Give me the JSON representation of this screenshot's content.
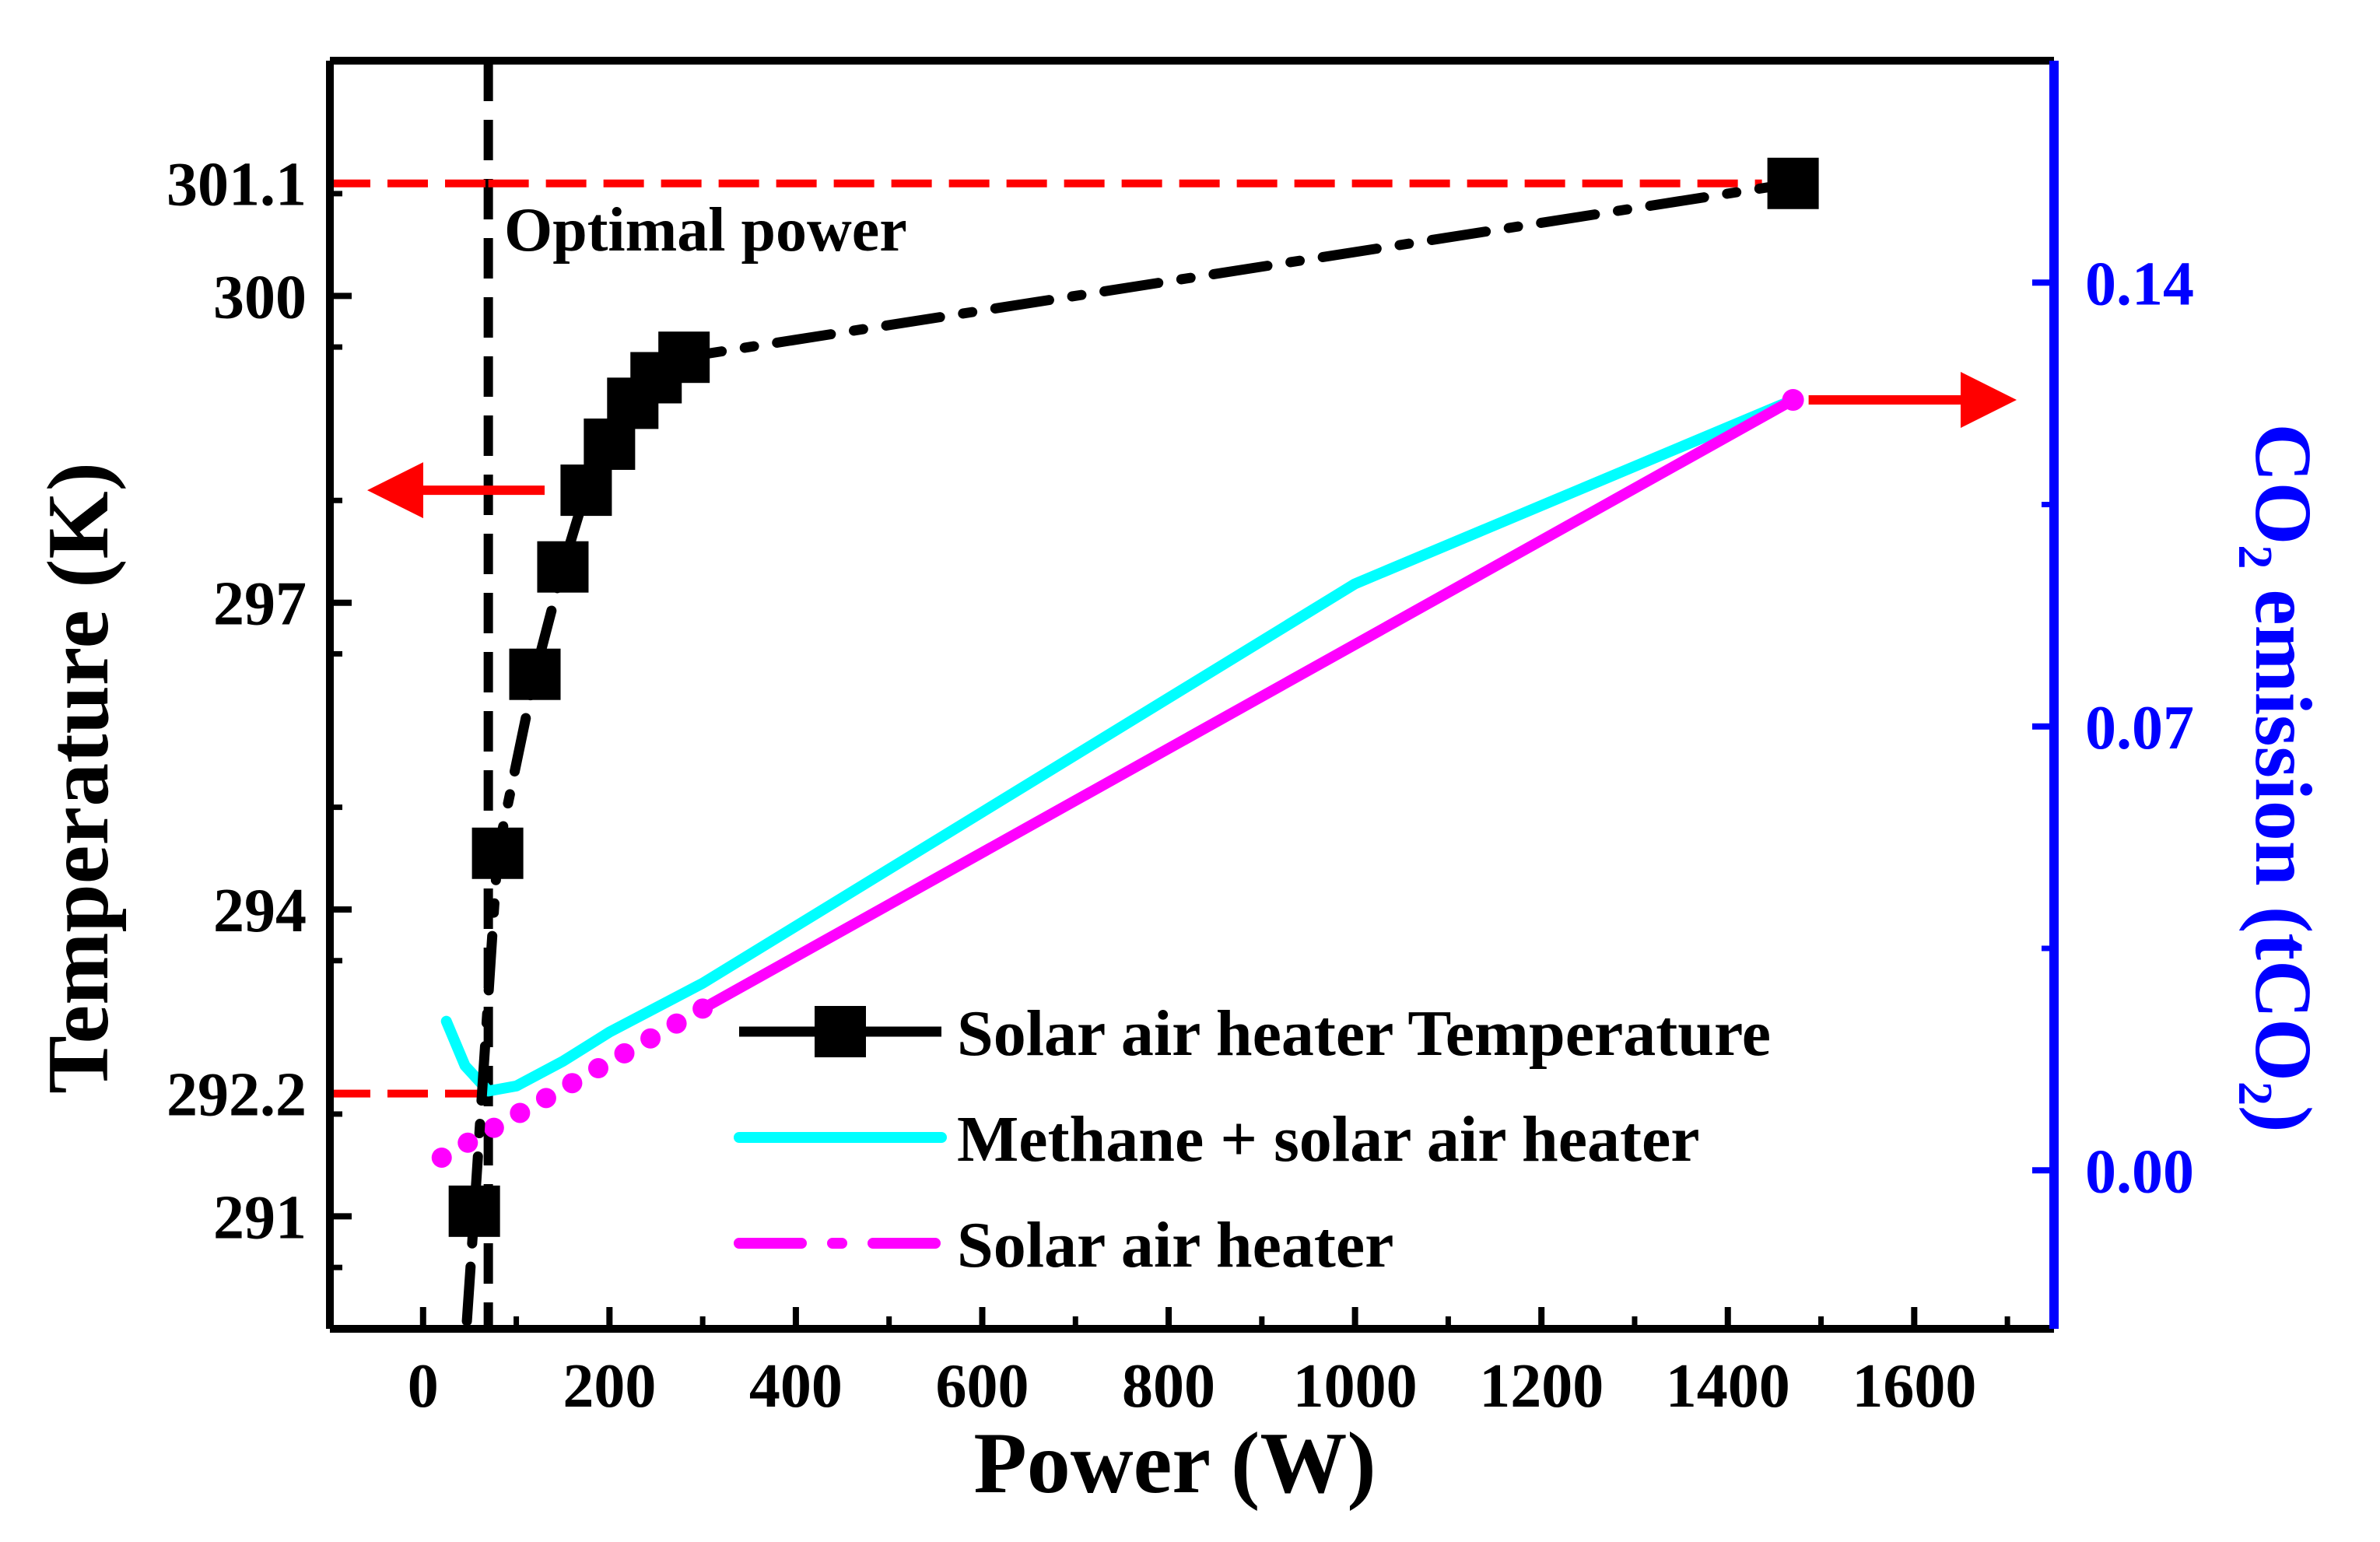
{
  "colors": {
    "axis": "#000000",
    "right_axis": "#0000ff",
    "reference": "#ff0000",
    "temperature": "#000000",
    "methane": "#00ffff",
    "solar": "#ff00ff"
  },
  "chart_data": {
    "type": "line",
    "x_axis": {
      "label": "Power (W)",
      "range": [
        -100,
        1750
      ],
      "ticks": [
        0,
        200,
        400,
        600,
        800,
        1000,
        1200,
        1400,
        1600
      ],
      "tick_labels": [
        "0",
        "200",
        "400",
        "600",
        "800",
        "1000",
        "1200",
        "1400",
        "1600"
      ]
    },
    "y_axis_left": {
      "label": "Temperature (K)",
      "range": [
        289.9,
        302.3
      ],
      "ticks": [
        291,
        294,
        297,
        300
      ],
      "tick_labels": [
        "291",
        "294",
        "297",
        "300"
      ],
      "reference_tick_labels": [
        "292.2",
        "301.1"
      ]
    },
    "y_axis_right": {
      "label_prefix": "CO",
      "label_sub": "2",
      "label_middle": " emission (tCO",
      "label_sub2": "2",
      "label_suffix": ")",
      "range": [
        -0.025,
        0.175
      ],
      "ticks": [
        0.0,
        0.07,
        0.14
      ],
      "tick_labels": [
        "0.00",
        "0.07",
        "0.14"
      ]
    },
    "series": [
      {
        "name": "Solar air heater Temperature",
        "axis": "left",
        "x": [
          55,
          80,
          120,
          150,
          175,
          200,
          225,
          250,
          280,
          1470
        ],
        "y": [
          291.05,
          294.55,
          296.3,
          297.35,
          298.1,
          298.55,
          298.95,
          299.2,
          299.4,
          301.1
        ]
      },
      {
        "name": "Methane + solar air heater",
        "axis": "right",
        "x": [
          25,
          45,
          70,
          100,
          150,
          200,
          300,
          600,
          1000,
          1470
        ],
        "y": [
          0.0235,
          0.0165,
          0.0125,
          0.0133,
          0.0172,
          0.0218,
          0.0295,
          0.0565,
          0.0925,
          0.1215
        ]
      },
      {
        "name": "Solar air heater",
        "axis": "right",
        "x": [
          20,
          300,
          1470
        ],
        "y": [
          0.002,
          0.0255,
          0.1215
        ]
      }
    ],
    "annotations": [
      {
        "type": "vline",
        "x": 70,
        "label": "Optimal power"
      },
      {
        "type": "hline",
        "axis": "left",
        "y": 301.1,
        "label": "301.1"
      },
      {
        "type": "hline",
        "axis": "left",
        "y": 292.2,
        "label": "292.2"
      },
      {
        "type": "arrow",
        "direction": "left",
        "meaning": "series on left axis"
      },
      {
        "type": "arrow",
        "direction": "right",
        "meaning": "series on right axis"
      }
    ],
    "legend": {
      "position": "bottom-right",
      "entries": [
        "Solar air heater Temperature",
        "Methane + solar air heater",
        "Solar air heater"
      ]
    }
  }
}
